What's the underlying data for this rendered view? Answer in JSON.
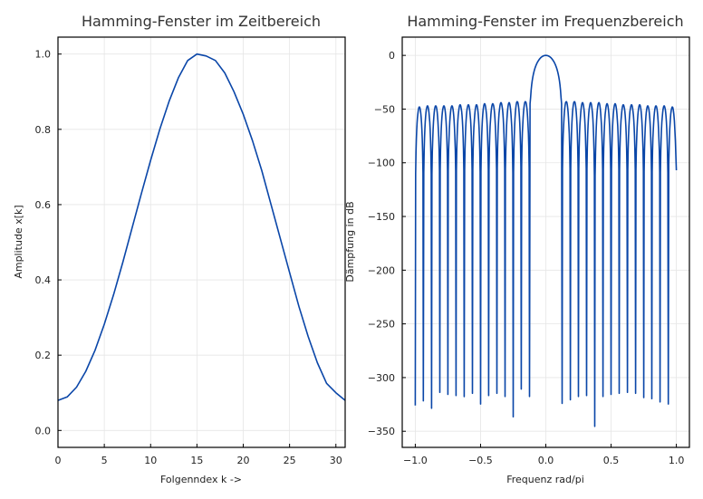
{
  "chart_data": [
    {
      "type": "line",
      "title": "Hamming-Fenster im Zeitbereich",
      "xlabel": "Folgenndex k ->",
      "ylabel": "Amplitude x[k]",
      "xlim": [
        0,
        31
      ],
      "ylim": [
        -0.045,
        1.045
      ],
      "xticks": [
        0,
        5,
        10,
        15,
        20,
        25,
        30
      ],
      "xtick_labels": [
        "0",
        "5",
        "10",
        "15",
        "20",
        "25",
        "30"
      ],
      "yticks": [
        0.0,
        0.2,
        0.4,
        0.6,
        0.8,
        1.0
      ],
      "ytick_labels": [
        "0.0",
        "0.2",
        "0.4",
        "0.6",
        "0.8",
        "1.0"
      ],
      "grid": true,
      "color": "#0a46a8",
      "series": [
        {
          "x": [
            0,
            1,
            2,
            3,
            4,
            5,
            6,
            7,
            8,
            9,
            10,
            11,
            12,
            13,
            14,
            15,
            16,
            17,
            18,
            19,
            20,
            21,
            22,
            23,
            24,
            25,
            26,
            27,
            28,
            29,
            30,
            31
          ],
          "values": [
            0.08,
            0.089,
            0.115,
            0.157,
            0.213,
            0.282,
            0.361,
            0.447,
            0.538,
            0.629,
            0.718,
            0.801,
            0.875,
            0.937,
            0.983,
            1.0,
            0.995,
            0.983,
            0.95,
            0.9,
            0.84,
            0.77,
            0.69,
            0.6,
            0.51,
            0.42,
            0.33,
            0.25,
            0.18,
            0.125,
            0.1,
            0.08
          ]
        }
      ]
    },
    {
      "type": "line",
      "title": "Hamming-Fenster im Frequenzbereich",
      "xlabel": "Frequenz rad/pi",
      "ylabel": "Dämpfung in dB",
      "xlim": [
        -1.1,
        1.1
      ],
      "ylim": [
        -365,
        17
      ],
      "xticks": [
        -1.0,
        -0.5,
        0.0,
        0.5,
        1.0
      ],
      "xtick_labels": [
        "−1.0",
        "−0.5",
        "0.0",
        "0.5",
        "1.0"
      ],
      "yticks": [
        0,
        -50,
        -100,
        -150,
        -200,
        -250,
        -300,
        -350
      ],
      "ytick_labels": [
        "0",
        "−50",
        "−100",
        "−150",
        "−200",
        "−250",
        "−300",
        "−350"
      ],
      "grid": true,
      "color": "#0a46a8",
      "main_lobe": {
        "half_width": 0.125,
        "peak": 0
      },
      "sidelobes": {
        "left": {
          "nulls": [
            -1.0,
            -0.938,
            -0.875,
            -0.812,
            -0.75,
            -0.688,
            -0.625,
            -0.562,
            -0.5,
            -0.438,
            -0.375,
            -0.312,
            -0.25,
            -0.188,
            -0.125
          ],
          "depths": [
            -326,
            -324,
            -331,
            -316,
            -318,
            -319,
            -320,
            -317,
            -327,
            -319,
            -317,
            -320,
            -339,
            -313,
            -320
          ],
          "peaks": [
            -48,
            -47,
            -47,
            -47,
            -47,
            -46,
            -46,
            -46,
            -45,
            -45,
            -44,
            -44,
            -43,
            -43
          ]
        },
        "right": {
          "nulls": [
            0.125,
            0.188,
            0.25,
            0.312,
            0.375,
            0.438,
            0.5,
            0.562,
            0.625,
            0.688,
            0.75,
            0.812,
            0.875,
            0.938
          ],
          "depths": [
            -324,
            -323,
            -320,
            -319,
            -348,
            -320,
            -318,
            -317,
            -316,
            -317,
            -321,
            -322,
            -325,
            -327
          ],
          "peaks": [
            -43,
            -43,
            -44,
            -44,
            -44,
            -45,
            -45,
            -46,
            -46,
            -46,
            -47,
            -47,
            -47,
            -48
          ]
        },
        "end_value": -107
      }
    }
  ]
}
